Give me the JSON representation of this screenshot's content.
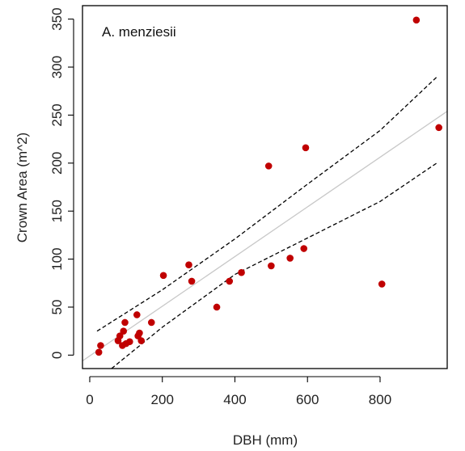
{
  "chart_data": {
    "type": "scatter",
    "annotation": "A. menziesii",
    "xlabel": "DBH (mm)",
    "ylabel": "Crown Area (m^2)",
    "xlim": [
      -20,
      985
    ],
    "ylim": [
      -14,
      364
    ],
    "xticks": [
      0,
      200,
      400,
      600,
      800
    ],
    "yticks": [
      0,
      50,
      100,
      150,
      200,
      250,
      300,
      350
    ],
    "grid": false,
    "point_color": "#c00000",
    "fit_color": "#c8c8c8",
    "ci_color": "#000000",
    "points": [
      {
        "x": 25,
        "y": 3
      },
      {
        "x": 30,
        "y": 10
      },
      {
        "x": 78,
        "y": 15
      },
      {
        "x": 83,
        "y": 20
      },
      {
        "x": 90,
        "y": 10
      },
      {
        "x": 93,
        "y": 25
      },
      {
        "x": 97,
        "y": 34
      },
      {
        "x": 100,
        "y": 12
      },
      {
        "x": 110,
        "y": 14
      },
      {
        "x": 130,
        "y": 42
      },
      {
        "x": 133,
        "y": 20
      },
      {
        "x": 137,
        "y": 23
      },
      {
        "x": 142,
        "y": 15
      },
      {
        "x": 170,
        "y": 34
      },
      {
        "x": 203,
        "y": 83
      },
      {
        "x": 273,
        "y": 94
      },
      {
        "x": 281,
        "y": 77
      },
      {
        "x": 350,
        "y": 50
      },
      {
        "x": 385,
        "y": 77
      },
      {
        "x": 418,
        "y": 86
      },
      {
        "x": 493,
        "y": 197
      },
      {
        "x": 500,
        "y": 93
      },
      {
        "x": 552,
        "y": 101
      },
      {
        "x": 590,
        "y": 111
      },
      {
        "x": 595,
        "y": 216
      },
      {
        "x": 805,
        "y": 74
      },
      {
        "x": 900,
        "y": 349
      },
      {
        "x": 962,
        "y": 237
      }
    ],
    "fit_line": [
      {
        "x": -20,
        "y": -6
      },
      {
        "x": 985,
        "y": 254
      }
    ],
    "ci_upper": [
      {
        "x": 20,
        "y": 25
      },
      {
        "x": 200,
        "y": 68
      },
      {
        "x": 400,
        "y": 121
      },
      {
        "x": 600,
        "y": 178
      },
      {
        "x": 800,
        "y": 234
      },
      {
        "x": 960,
        "y": 291
      }
    ],
    "ci_lower": [
      {
        "x": 60,
        "y": -14
      },
      {
        "x": 200,
        "y": 29
      },
      {
        "x": 400,
        "y": 84
      },
      {
        "x": 600,
        "y": 122
      },
      {
        "x": 800,
        "y": 160
      },
      {
        "x": 960,
        "y": 201
      }
    ]
  }
}
